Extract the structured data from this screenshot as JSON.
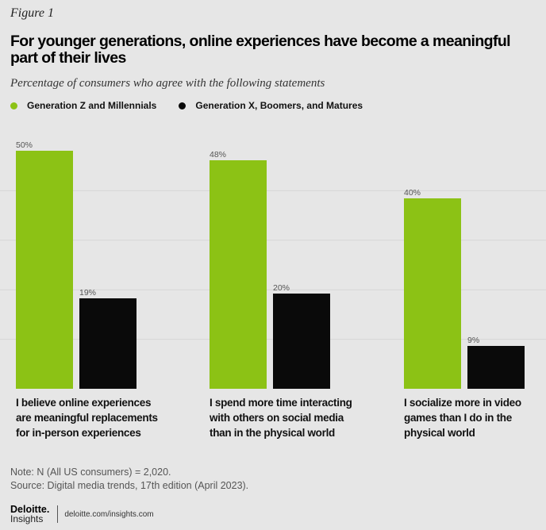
{
  "figure_label": "Figure 1",
  "title": "For younger generations, online experiences have become a meaningful part of their lives",
  "subtitle": "Percentage of consumers who agree with the following statements",
  "legend": [
    {
      "label": "Generation Z and Millennials",
      "color": "#8cc215"
    },
    {
      "label": "Generation X, Boomers, and Matures",
      "color": "#0a0a0a"
    }
  ],
  "chart_data": {
    "type": "bar",
    "title": "For younger generations, online experiences have become a meaningful part of their lives",
    "subtitle": "Percentage of consumers who agree with the following statements",
    "categories": [
      "I believe online experiences are meaningful replacements for in-person experiences",
      "I spend more time interacting with others on social media than in the physical world",
      "I socialize more in video games than I do in the physical world"
    ],
    "series": [
      {
        "name": "Generation Z and Millennials",
        "values": [
          50,
          48,
          40
        ],
        "labels": [
          "50%",
          "48%",
          "40%"
        ],
        "color": "#8cc215"
      },
      {
        "name": "Generation X, Boomers, and Matures",
        "values": [
          19,
          20,
          9
        ],
        "labels": [
          "19%",
          "20%",
          "9%"
        ],
        "color": "#0a0a0a"
      }
    ],
    "ylim": [
      0,
      52
    ],
    "grid": true,
    "legend_position": "top-left"
  },
  "category_label_lines": [
    [
      "I believe online experiences",
      "are meaningful replacements",
      "for in-person experiences"
    ],
    [
      "I spend more time interacting",
      "with others on social media",
      "than in the physical world"
    ],
    [
      "I socialize more in video",
      "games than I do in the",
      "physical world"
    ]
  ],
  "note": "Note: N (All US consumers) = 2,020.",
  "source": "Source: Digital media trends, 17th edition (April 2023).",
  "footer": {
    "brand_name": "Deloitte.",
    "brand_sub": "Insights",
    "url": "deloitte.com/insights.com"
  }
}
